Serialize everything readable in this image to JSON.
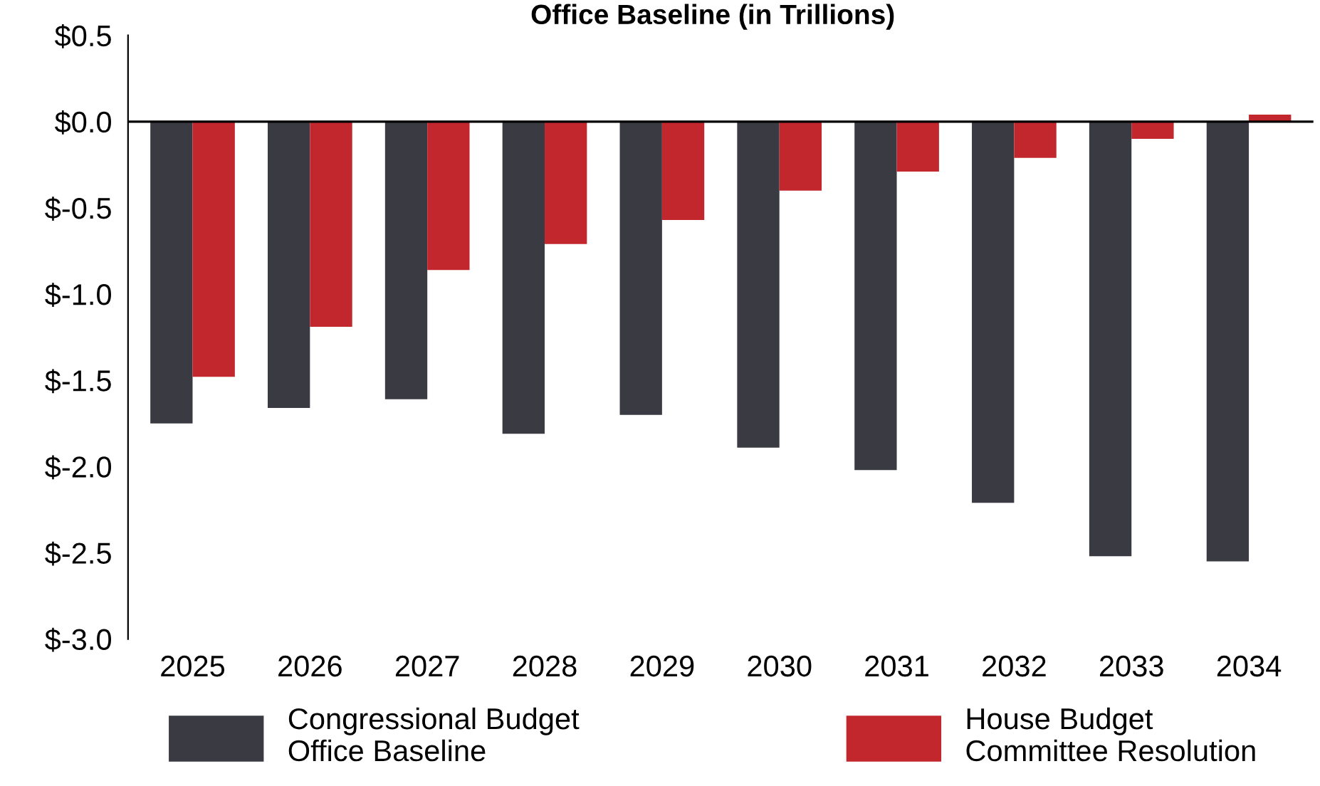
{
  "chart_data": {
    "type": "bar",
    "title": "Office Baseline (in Trillions)",
    "categories": [
      "2025",
      "2026",
      "2027",
      "2028",
      "2029",
      "2030",
      "2031",
      "2032",
      "2033",
      "2034"
    ],
    "series": [
      {
        "name": "Congressional Budget Office Baseline",
        "color": "#3a3b42",
        "values": [
          -1.75,
          -1.66,
          -1.61,
          -1.81,
          -1.7,
          -1.89,
          -2.02,
          -2.21,
          -2.52,
          -2.55
        ]
      },
      {
        "name": "House Budget Committee Resolution",
        "color": "#c1272d",
        "values": [
          -1.48,
          -1.19,
          -0.86,
          -0.71,
          -0.57,
          -0.4,
          -0.29,
          -0.21,
          -0.1,
          0.04
        ]
      }
    ],
    "ylim": [
      -3.0,
      0.5
    ],
    "yticks": [
      {
        "value": 0.5,
        "label": "$0.5"
      },
      {
        "value": 0.0,
        "label": "$0.0"
      },
      {
        "value": -0.5,
        "label": "$-0.5"
      },
      {
        "value": -1.0,
        "label": "$-1.0"
      },
      {
        "value": -1.5,
        "label": "$-1.5"
      },
      {
        "value": -2.0,
        "label": "$-2.0"
      },
      {
        "value": -2.5,
        "label": "$-2.5"
      },
      {
        "value": -3.0,
        "label": "$-3.0"
      }
    ],
    "ref_lines": [
      {
        "axis": "y",
        "value": 0,
        "color": "#000000"
      }
    ],
    "grid": false,
    "legend": "bottom"
  }
}
